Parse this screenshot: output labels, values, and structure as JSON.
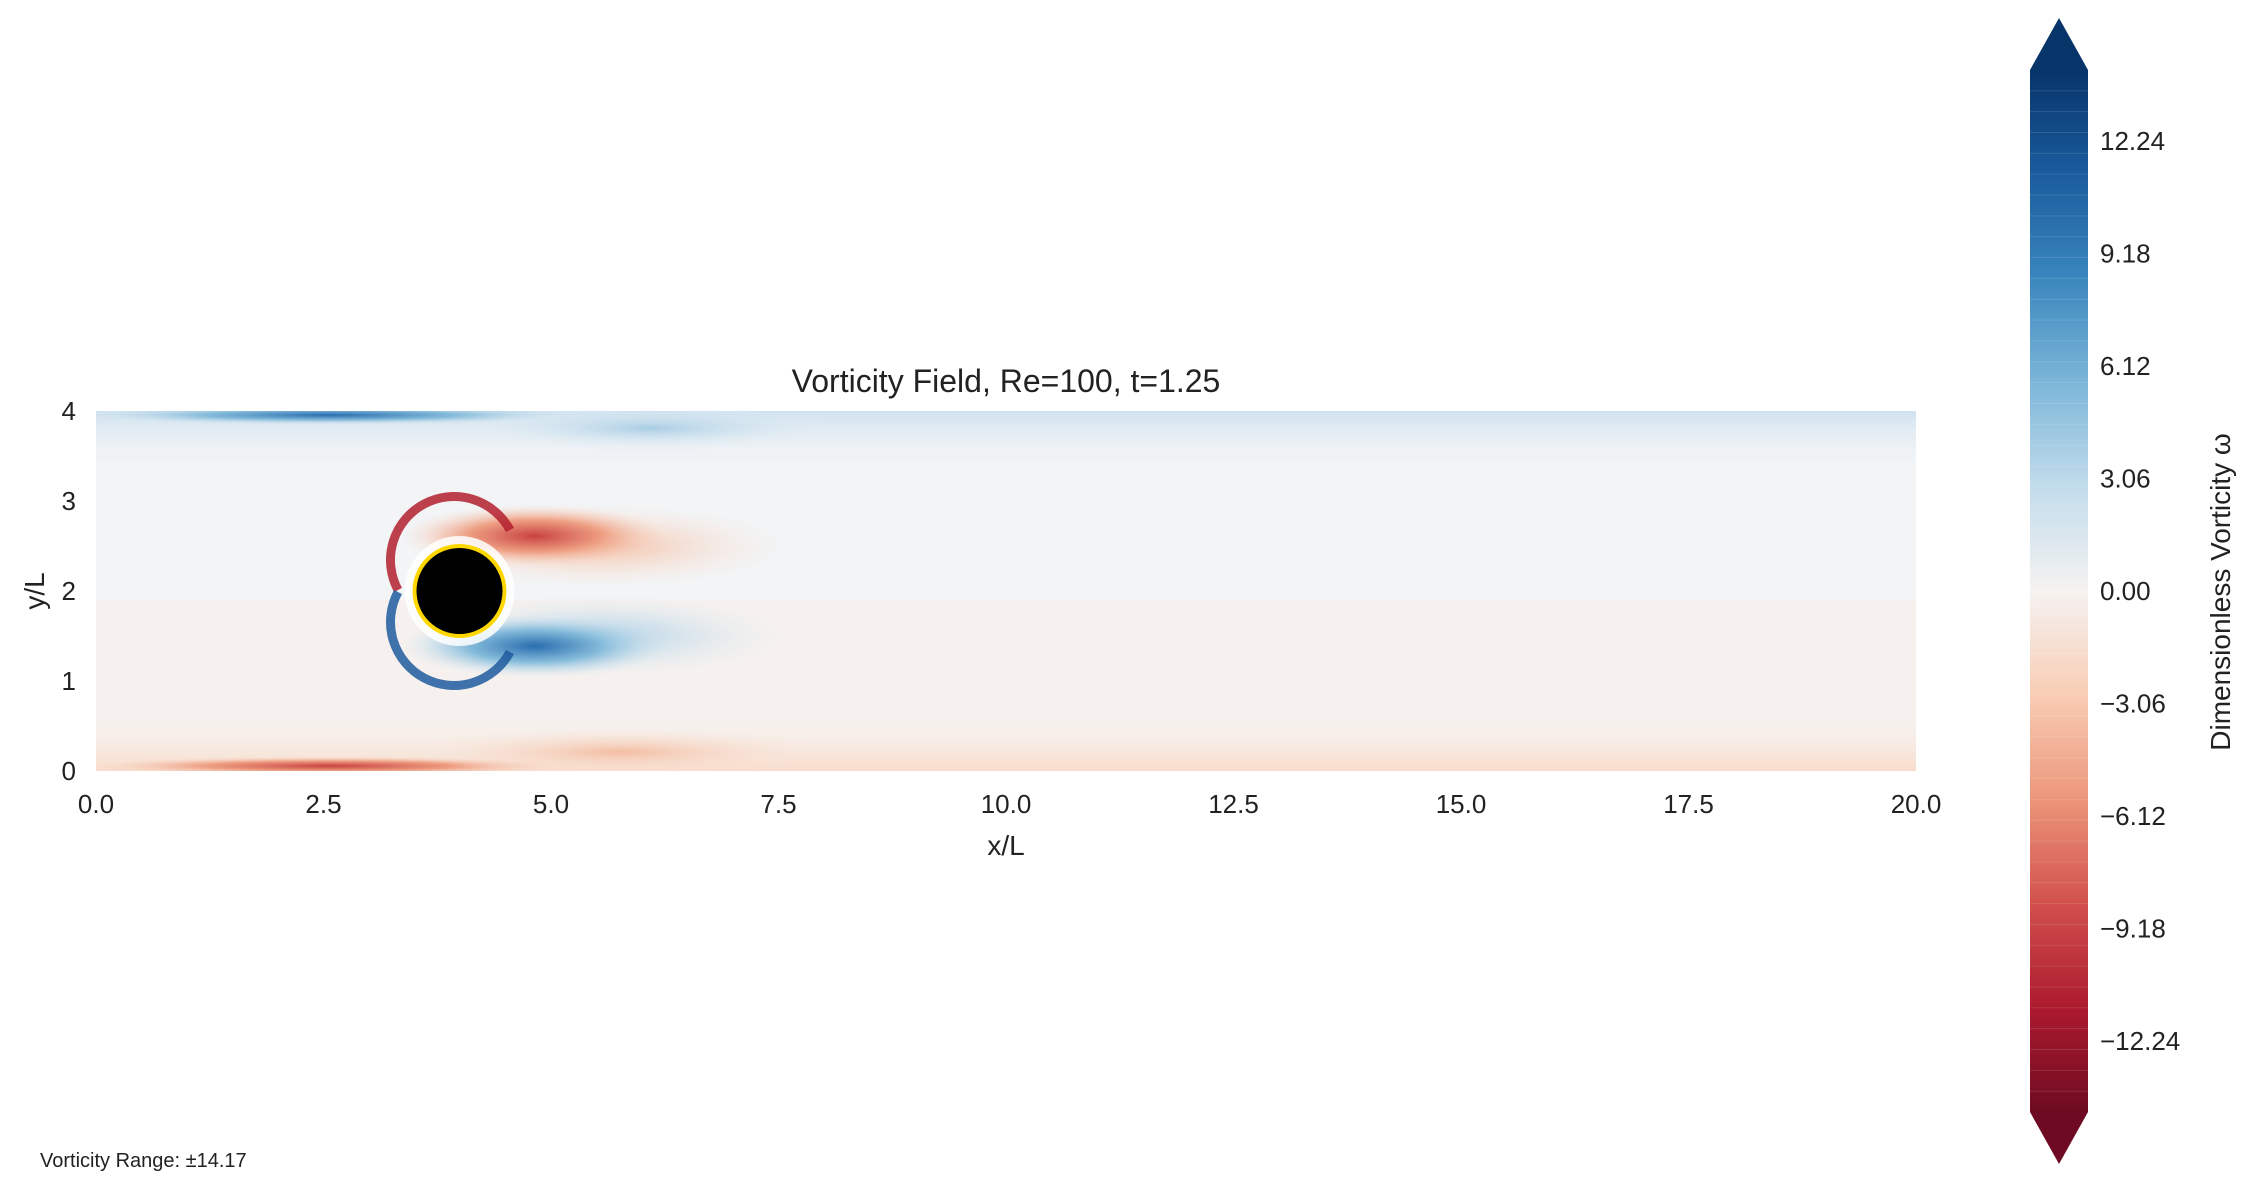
{
  "chart_data": {
    "type": "heatmap",
    "title": "Vorticity Field, Re=100, t=1.25",
    "xlabel": "x/L",
    "ylabel": "y/L",
    "xlim": [
      0,
      20
    ],
    "ylim": [
      0,
      4
    ],
    "x_ticks": [
      "0.0",
      "2.5",
      "5.0",
      "7.5",
      "10.0",
      "12.5",
      "15.0",
      "17.5",
      "20.0"
    ],
    "y_ticks": [
      "0",
      "1",
      "2",
      "3",
      "4"
    ],
    "colormap": "RdBu",
    "colorbar": {
      "label": "Dimensionless Vorticity ω",
      "range": [
        -14.17,
        14.17
      ],
      "extend": "both",
      "ticks": [
        "12.24",
        "9.18",
        "6.12",
        "3.06",
        "0.00",
        "−3.06",
        "−6.12",
        "−9.18",
        "−12.24"
      ],
      "tick_values": [
        12.24,
        9.18,
        6.12,
        3.06,
        0,
        -3.06,
        -6.12,
        -9.18,
        -12.24
      ]
    },
    "cylinder": {
      "center": [
        4,
        2
      ],
      "radius": 0.5,
      "fill": "#000000",
      "edge_color": "#ffd700"
    },
    "features": [
      {
        "name": "top wall boundary layer",
        "sign": "positive",
        "y": 4,
        "x_range": [
          0,
          20
        ],
        "peak": 11.5
      },
      {
        "name": "bottom wall boundary layer",
        "sign": "negative",
        "y": 0,
        "x_range": [
          0,
          20
        ],
        "peak": -8.5
      },
      {
        "name": "upper shear layer",
        "sign": "negative",
        "x_range": [
          3.4,
          6.5
        ],
        "y": 2.7,
        "peak": -11.5
      },
      {
        "name": "lower shear layer",
        "sign": "positive",
        "x_range": [
          3.4,
          6.5
        ],
        "y": 1.3,
        "peak": 11.5
      }
    ]
  },
  "footnote": "Vorticity Range: ±14.17"
}
